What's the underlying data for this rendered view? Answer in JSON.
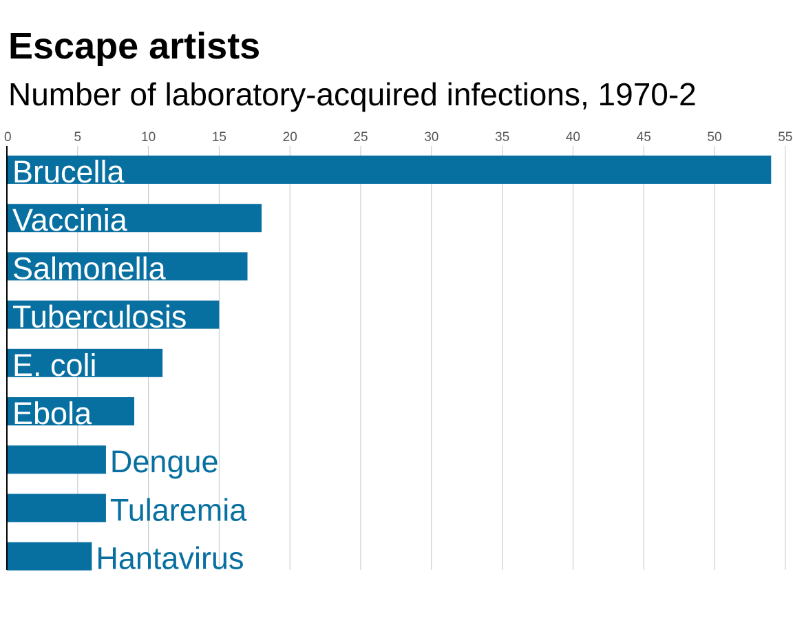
{
  "chart_data": {
    "type": "bar",
    "orientation": "horizontal",
    "title": "Escape artists",
    "subtitle": "Number of laboratory-acquired infections, 1970-2",
    "categories": [
      "Brucella",
      "Vaccinia",
      "Salmonella",
      "Tuberculosis",
      "E. coli",
      "Ebola",
      "Dengue",
      "Tularemia",
      "Hantavirus"
    ],
    "values": [
      54,
      18,
      17,
      15,
      11,
      9,
      7,
      7,
      6
    ],
    "xlim": [
      0,
      55
    ],
    "ticks": [
      0,
      5,
      10,
      15,
      20,
      25,
      30,
      35,
      40,
      45,
      50,
      55
    ],
    "tick_labels": [
      "0",
      "5",
      "10",
      "15",
      "20",
      "25",
      "30",
      "35",
      "40",
      "45",
      "50",
      "55"
    ],
    "grid": true,
    "axis_position": "top",
    "colors": {
      "bar": "#086fa1",
      "label_inside": "#ffffff",
      "label_outside": "#086fa1",
      "grid": "#b9c7d0",
      "axis": "#000000"
    }
  }
}
